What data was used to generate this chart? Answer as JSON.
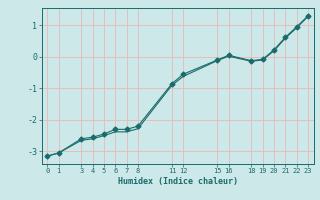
{
  "xlabel": "Humidex (Indice chaleur)",
  "bg_color": "#cce8e8",
  "grid_color": "#e8b8b8",
  "line_color": "#1a6b6b",
  "series1_x": [
    0,
    1,
    3,
    4,
    5,
    6,
    7,
    8,
    11,
    12,
    15,
    16,
    18,
    19,
    20,
    21,
    22,
    23
  ],
  "series1_y": [
    -3.15,
    -3.05,
    -2.6,
    -2.55,
    -2.45,
    -2.3,
    -2.3,
    -2.2,
    -0.85,
    -0.55,
    -0.1,
    0.05,
    -0.12,
    -0.08,
    0.22,
    0.62,
    0.95,
    1.3
  ],
  "series2_x": [
    0,
    1,
    3,
    4,
    5,
    6,
    7,
    8,
    11,
    12,
    15,
    16,
    18,
    19,
    20,
    21,
    22,
    23
  ],
  "series2_y": [
    -3.15,
    -3.05,
    -2.65,
    -2.6,
    -2.5,
    -2.38,
    -2.38,
    -2.28,
    -0.9,
    -0.62,
    -0.12,
    0.02,
    -0.14,
    -0.1,
    0.19,
    0.59,
    0.92,
    1.28
  ],
  "xticks": [
    0,
    1,
    3,
    4,
    5,
    6,
    7,
    8,
    11,
    12,
    15,
    16,
    18,
    19,
    20,
    21,
    22,
    23
  ],
  "yticks": [
    -3,
    -2,
    -1,
    0,
    1
  ],
  "xlim": [
    -0.5,
    23.5
  ],
  "ylim": [
    -3.4,
    1.55
  ],
  "markersize": 2.5,
  "linewidth": 0.8
}
